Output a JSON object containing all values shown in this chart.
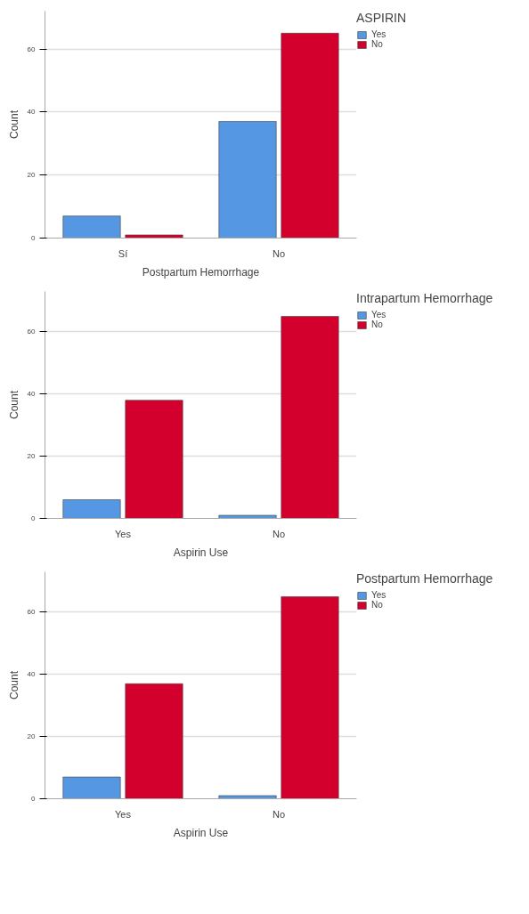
{
  "chart_data": [
    {
      "type": "bar",
      "xlabel": "Postpartum Hemorrhage",
      "ylabel": "Count",
      "legend_title": "ASPIRIN",
      "categories": [
        "Sí",
        "No"
      ],
      "ylim": [
        0,
        72
      ],
      "yticks": [
        0,
        20,
        40,
        60
      ],
      "grid": "y",
      "legend": "top right",
      "series": [
        {
          "name": "Yes",
          "color": "#5597e3",
          "values": [
            7,
            37
          ]
        },
        {
          "name": "No",
          "color": "#d3002d",
          "values": [
            1,
            65
          ]
        }
      ]
    },
    {
      "type": "bar",
      "xlabel": "Aspirin Use",
      "ylabel": "Count",
      "legend_title": "Intrapartum Hemorrhage",
      "categories": [
        "Yes",
        "No"
      ],
      "ylim": [
        0,
        73
      ],
      "yticks": [
        0,
        20,
        40,
        60
      ],
      "grid": "y",
      "legend": "top right",
      "series": [
        {
          "name": "Yes",
          "color": "#5597e3",
          "values": [
            6,
            1
          ]
        },
        {
          "name": "No",
          "color": "#d3002d",
          "values": [
            38,
            65
          ]
        }
      ]
    },
    {
      "type": "bar",
      "xlabel": "Aspirin Use",
      "ylabel": "Count",
      "legend_title": "Postpartum Hemorrhage",
      "categories": [
        "Yes",
        "No"
      ],
      "ylim": [
        0,
        73
      ],
      "yticks": [
        0,
        20,
        40,
        60
      ],
      "grid": "y",
      "legend": "top right",
      "series": [
        {
          "name": "Yes",
          "color": "#5597e3",
          "values": [
            7,
            1
          ]
        },
        {
          "name": "No",
          "color": "#d3002d",
          "values": [
            37,
            65
          ]
        }
      ]
    }
  ]
}
